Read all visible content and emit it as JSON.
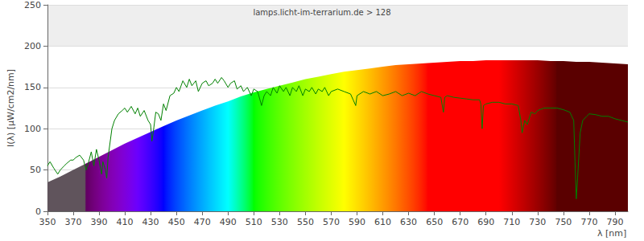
{
  "chart_data": {
    "type": "line",
    "title": "lamps.licht-im-terrarium.de > 128",
    "x_label": "λ [nm]",
    "y_label": "I(λ) [µW/cm2/nm]",
    "xlim": [
      350,
      800
    ],
    "xticks": [
      350,
      370,
      390,
      410,
      430,
      450,
      470,
      490,
      510,
      530,
      550,
      570,
      590,
      610,
      630,
      650,
      670,
      690,
      710,
      730,
      750,
      770,
      790
    ],
    "ylim": [
      0,
      250
    ],
    "yticks": [
      0,
      50,
      100,
      150,
      200,
      250
    ],
    "grid": true,
    "series": [
      {
        "type": "area",
        "x": [
          350,
          360,
          370,
          380,
          390,
          400,
          410,
          420,
          430,
          440,
          450,
          460,
          470,
          480,
          490,
          500,
          510,
          520,
          530,
          540,
          550,
          560,
          570,
          580,
          590,
          600,
          610,
          620,
          630,
          640,
          650,
          660,
          670,
          680,
          690,
          700,
          710,
          720,
          730,
          740,
          750,
          760,
          770,
          780,
          790,
          800
        ],
        "values": [
          35,
          42,
          50,
          58,
          66,
          74,
          82,
          89,
          96,
          103,
          110,
          116,
          122,
          128,
          133,
          139,
          144,
          148,
          152,
          156,
          160,
          163,
          166,
          169,
          171,
          173,
          175,
          177,
          178,
          179,
          180,
          181,
          182,
          182,
          183,
          183,
          183,
          183,
          183,
          182,
          182,
          181,
          181,
          180,
          179,
          178
        ]
      },
      {
        "type": "line",
        "color": "#008000",
        "x": [
          350,
          352,
          355,
          358,
          360,
          363,
          365,
          368,
          370,
          372,
          375,
          378,
          380,
          382,
          384,
          386,
          388,
          390,
          392,
          393,
          395,
          396,
          397,
          400,
          402,
          405,
          408,
          410,
          412,
          415,
          418,
          420,
          422,
          425,
          428,
          430,
          431,
          432,
          434,
          436,
          438,
          440,
          442,
          445,
          448,
          450,
          452,
          455,
          458,
          460,
          462,
          465,
          467,
          470,
          473,
          475,
          478,
          480,
          482,
          485,
          487,
          490,
          492,
          495,
          497,
          500,
          502,
          505,
          508,
          510,
          513,
          516,
          518,
          520,
          523,
          525,
          528,
          530,
          533,
          535,
          538,
          540,
          543,
          545,
          548,
          550,
          553,
          555,
          558,
          560,
          563,
          565,
          568,
          570,
          575,
          580,
          585,
          587,
          589,
          590,
          595,
          600,
          605,
          610,
          615,
          620,
          625,
          630,
          635,
          640,
          645,
          650,
          655,
          657,
          658,
          660,
          665,
          670,
          675,
          680,
          685,
          686,
          687,
          688,
          690,
          695,
          700,
          705,
          710,
          715,
          717,
          718,
          720,
          722,
          725,
          728,
          730,
          735,
          740,
          745,
          750,
          755,
          758,
          759,
          760,
          761,
          763,
          765,
          768,
          770,
          775,
          780,
          785,
          790,
          795,
          800
        ],
        "values": [
          55,
          60,
          52,
          45,
          50,
          55,
          58,
          62,
          62,
          65,
          68,
          62,
          50,
          60,
          72,
          55,
          75,
          62,
          45,
          60,
          50,
          40,
          65,
          100,
          110,
          118,
          122,
          125,
          120,
          127,
          118,
          125,
          115,
          122,
          110,
          105,
          85,
          95,
          120,
          118,
          110,
          130,
          122,
          140,
          143,
          150,
          145,
          158,
          150,
          160,
          152,
          158,
          145,
          155,
          158,
          152,
          155,
          160,
          155,
          162,
          158,
          150,
          155,
          158,
          148,
          152,
          145,
          150,
          140,
          148,
          145,
          128,
          140,
          145,
          140,
          150,
          143,
          152,
          145,
          150,
          140,
          150,
          145,
          152,
          140,
          148,
          145,
          150,
          142,
          148,
          145,
          150,
          140,
          145,
          148,
          145,
          142,
          135,
          128,
          140,
          145,
          142,
          145,
          140,
          142,
          145,
          140,
          143,
          140,
          145,
          142,
          140,
          138,
          120,
          138,
          140,
          138,
          137,
          136,
          135,
          135,
          130,
          100,
          128,
          130,
          132,
          132,
          130,
          130,
          128,
          110,
          95,
          110,
          105,
          120,
          118,
          122,
          125,
          125,
          125,
          123,
          120,
          110,
          60,
          15,
          40,
          95,
          110,
          115,
          118,
          117,
          115,
          115,
          112,
          110,
          108
        ]
      }
    ]
  }
}
